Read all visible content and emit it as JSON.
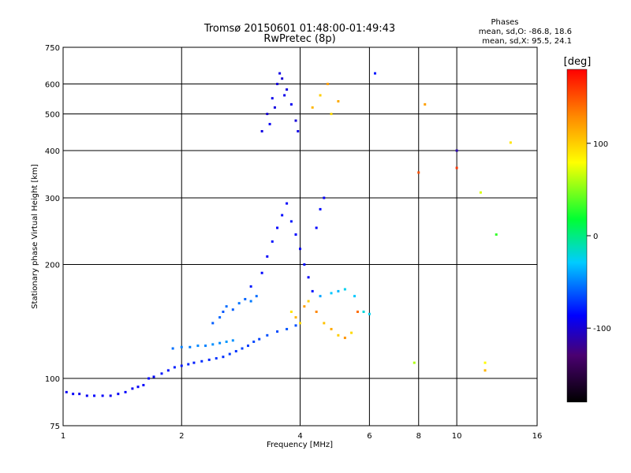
{
  "chart_data": {
    "type": "scatter",
    "title": "Tromsø 20150601 01:48:00-01:49:43",
    "subtitle": "RwPretec (8p)",
    "xlabel": "Frequency [MHz]",
    "ylabel": "Stationary phase Virtual Height [km]",
    "x_scale": "log",
    "y_scale": "log",
    "xlim": [
      1,
      16
    ],
    "ylim": [
      75,
      750
    ],
    "x_ticks": [
      1,
      2,
      4,
      6,
      8,
      10,
      16
    ],
    "x_tick_labels": [
      "1",
      "2",
      "4",
      "6",
      "8",
      "10",
      "16"
    ],
    "y_ticks": [
      75,
      100,
      200,
      300,
      400,
      500,
      600,
      750
    ],
    "y_tick_labels": [
      "75",
      "100",
      "200",
      "300",
      "400",
      "500",
      "600",
      "750"
    ],
    "grid": true,
    "colorbar": {
      "label": "[deg]",
      "range": [
        -180,
        180
      ],
      "ticks": [
        100,
        0,
        -100
      ],
      "tick_labels": [
        "100",
        "0",
        "-100"
      ]
    },
    "stats": {
      "heading": "Phases",
      "o_line": "mean, sd,O: -86.8, 18.6",
      "x_line": "mean, sd,X:  95.5, 24.1"
    },
    "series": [
      {
        "points": [
          [
            1.02,
            92,
            -90
          ],
          [
            1.06,
            91,
            -88
          ],
          [
            1.1,
            91,
            -92
          ],
          [
            1.15,
            90,
            -90
          ],
          [
            1.2,
            90,
            -86
          ],
          [
            1.26,
            90,
            -88
          ],
          [
            1.32,
            90,
            -91
          ],
          [
            1.38,
            91,
            -89
          ],
          [
            1.44,
            92,
            -87
          ],
          [
            1.5,
            94,
            -90
          ],
          [
            1.55,
            95,
            -88
          ],
          [
            1.6,
            96,
            -86
          ],
          [
            1.65,
            100,
            -84
          ],
          [
            1.7,
            101,
            -85
          ],
          [
            1.78,
            103,
            -80
          ],
          [
            1.85,
            105,
            -82
          ],
          [
            1.92,
            107,
            -78
          ],
          [
            2.0,
            108,
            -80
          ],
          [
            2.08,
            109,
            -76
          ],
          [
            2.15,
            110,
            -78
          ],
          [
            2.25,
            111,
            -74
          ],
          [
            2.35,
            112,
            -76
          ],
          [
            2.45,
            113,
            -72
          ],
          [
            2.55,
            114,
            -74
          ],
          [
            2.65,
            116,
            -70
          ],
          [
            2.75,
            118,
            -72
          ],
          [
            2.85,
            120,
            -68
          ],
          [
            2.95,
            122,
            -70
          ],
          [
            3.05,
            125,
            -66
          ],
          [
            3.15,
            127,
            -68
          ],
          [
            3.3,
            130,
            -64
          ],
          [
            3.5,
            133,
            -66
          ],
          [
            3.7,
            135,
            -62
          ],
          [
            3.9,
            138,
            -64
          ],
          [
            1.9,
            120,
            -55
          ],
          [
            2.0,
            121,
            -50
          ],
          [
            2.1,
            121,
            -52
          ],
          [
            2.2,
            122,
            -48
          ],
          [
            2.3,
            122,
            -50
          ],
          [
            2.4,
            123,
            -46
          ],
          [
            2.5,
            124,
            -48
          ],
          [
            2.6,
            125,
            -44
          ],
          [
            2.7,
            126,
            -46
          ],
          [
            2.4,
            140,
            -60
          ],
          [
            2.5,
            145,
            -58
          ],
          [
            2.55,
            150,
            -62
          ],
          [
            2.6,
            155,
            -56
          ],
          [
            2.7,
            152,
            -60
          ],
          [
            2.8,
            158,
            -54
          ],
          [
            2.9,
            162,
            -58
          ],
          [
            3.0,
            160,
            -52
          ],
          [
            3.1,
            165,
            -56
          ],
          [
            3.0,
            175,
            -80
          ],
          [
            3.2,
            190,
            -85
          ],
          [
            3.3,
            210,
            -88
          ],
          [
            3.4,
            230,
            -82
          ],
          [
            3.5,
            250,
            -86
          ],
          [
            3.6,
            270,
            -84
          ],
          [
            3.7,
            290,
            -88
          ],
          [
            3.8,
            260,
            -80
          ],
          [
            3.9,
            240,
            -86
          ],
          [
            4.0,
            220,
            -90
          ],
          [
            4.1,
            200,
            -84
          ],
          [
            4.2,
            185,
            -88
          ],
          [
            4.3,
            170,
            -82
          ],
          [
            4.4,
            250,
            -86
          ],
          [
            4.5,
            280,
            -84
          ],
          [
            4.6,
            300,
            -88
          ],
          [
            3.8,
            150,
            90
          ],
          [
            3.9,
            145,
            110
          ],
          [
            4.0,
            140,
            95
          ],
          [
            4.1,
            155,
            120
          ],
          [
            4.2,
            160,
            100
          ],
          [
            4.4,
            150,
            130
          ],
          [
            4.6,
            140,
            105
          ],
          [
            4.8,
            135,
            115
          ],
          [
            5.0,
            130,
            100
          ],
          [
            5.2,
            128,
            125
          ],
          [
            5.4,
            132,
            95
          ],
          [
            5.6,
            150,
            140
          ],
          [
            4.5,
            165,
            -40
          ],
          [
            4.8,
            168,
            -30
          ],
          [
            5.0,
            170,
            -35
          ],
          [
            5.2,
            172,
            -25
          ],
          [
            5.5,
            165,
            -30
          ],
          [
            5.8,
            150,
            -20
          ],
          [
            6.0,
            148,
            -25
          ],
          [
            3.2,
            450,
            -95
          ],
          [
            3.3,
            500,
            -100
          ],
          [
            3.4,
            550,
            -92
          ],
          [
            3.5,
            600,
            -98
          ],
          [
            3.55,
            640,
            -94
          ],
          [
            3.6,
            620,
            -100
          ],
          [
            3.7,
            580,
            -96
          ],
          [
            3.8,
            530,
            -90
          ],
          [
            3.9,
            480,
            -98
          ],
          [
            3.95,
            450,
            -94
          ],
          [
            3.35,
            470,
            -90
          ],
          [
            3.45,
            520,
            -96
          ],
          [
            3.65,
            560,
            -92
          ],
          [
            4.3,
            520,
            110
          ],
          [
            4.5,
            560,
            100
          ],
          [
            4.7,
            600,
            120
          ],
          [
            4.8,
            500,
            95
          ],
          [
            5.0,
            540,
            115
          ],
          [
            6.2,
            640,
            -80
          ],
          [
            8.0,
            350,
            150
          ],
          [
            8.3,
            530,
            120
          ],
          [
            10.0,
            400,
            -110
          ],
          [
            10.0,
            360,
            160
          ],
          [
            11.5,
            310,
            70
          ],
          [
            12.6,
            240,
            30
          ],
          [
            13.7,
            420,
            90
          ],
          [
            11.8,
            110,
            80
          ],
          [
            11.8,
            105,
            110
          ],
          [
            7.8,
            110,
            60
          ]
        ]
      }
    ]
  }
}
